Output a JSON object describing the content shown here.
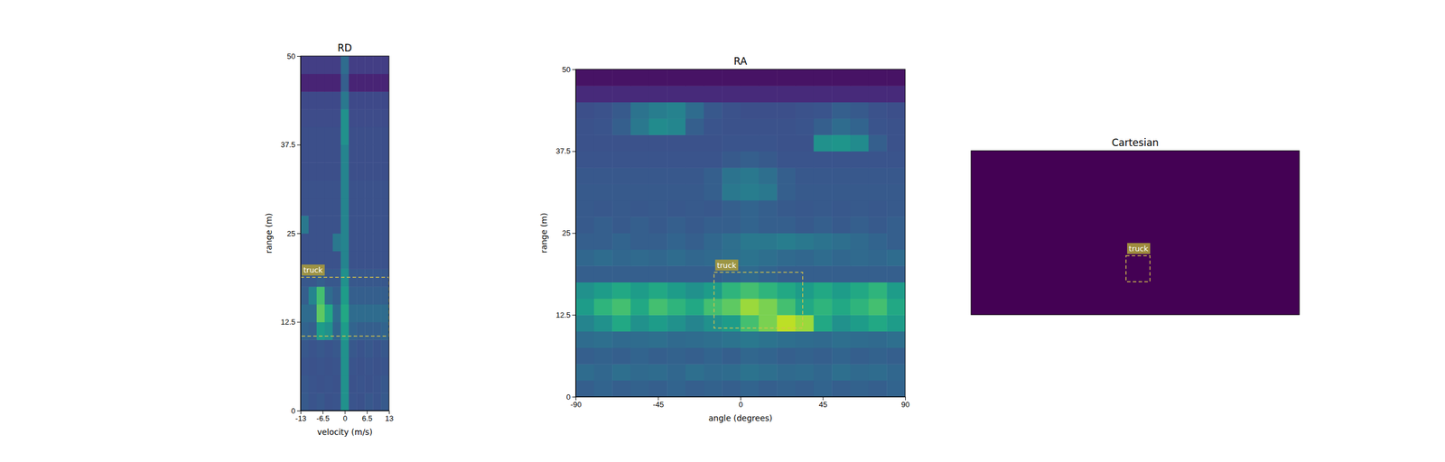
{
  "chart_data": [
    {
      "type": "heatmap",
      "title": "RD",
      "x_label": "velocity (m/s)",
      "y_label": "range (m)",
      "xlim": [
        -13,
        13
      ],
      "ylim": [
        0,
        50
      ],
      "xticks": [
        -13,
        -6.5,
        0,
        6.5,
        13
      ],
      "yticks": [
        0,
        12.5,
        25,
        37.5,
        50
      ],
      "zlim": [
        0,
        1
      ],
      "cells": [
        [
          0.28,
          0.26,
          0.27,
          0.25,
          0.26,
          0.5,
          0.26,
          0.25,
          0.27,
          0.26,
          0.28
        ],
        [
          0.27,
          0.26,
          0.25,
          0.26,
          0.25,
          0.5,
          0.25,
          0.26,
          0.25,
          0.26,
          0.27
        ],
        [
          0.26,
          0.25,
          0.26,
          0.25,
          0.26,
          0.5,
          0.26,
          0.25,
          0.26,
          0.25,
          0.26
        ],
        [
          0.27,
          0.26,
          0.27,
          0.26,
          0.27,
          0.5,
          0.27,
          0.26,
          0.27,
          0.26,
          0.27
        ],
        [
          0.32,
          0.3,
          0.55,
          0.5,
          0.32,
          0.55,
          0.32,
          0.3,
          0.3,
          0.3,
          0.32
        ],
        [
          0.35,
          0.35,
          0.75,
          0.6,
          0.35,
          0.6,
          0.35,
          0.35,
          0.35,
          0.35,
          0.35
        ],
        [
          0.3,
          0.45,
          0.7,
          0.35,
          0.3,
          0.55,
          0.3,
          0.3,
          0.3,
          0.3,
          0.3
        ],
        [
          0.27,
          0.27,
          0.3,
          0.27,
          0.27,
          0.5,
          0.27,
          0.27,
          0.27,
          0.27,
          0.27
        ],
        [
          0.25,
          0.25,
          0.25,
          0.25,
          0.25,
          0.45,
          0.25,
          0.25,
          0.25,
          0.25,
          0.25
        ],
        [
          0.25,
          0.25,
          0.25,
          0.25,
          0.4,
          0.45,
          0.25,
          0.25,
          0.25,
          0.25,
          0.25
        ],
        [
          0.4,
          0.25,
          0.25,
          0.25,
          0.25,
          0.45,
          0.25,
          0.25,
          0.25,
          0.25,
          0.25
        ],
        [
          0.25,
          0.25,
          0.25,
          0.25,
          0.25,
          0.45,
          0.25,
          0.25,
          0.25,
          0.25,
          0.25
        ],
        [
          0.25,
          0.25,
          0.25,
          0.25,
          0.25,
          0.45,
          0.25,
          0.25,
          0.25,
          0.25,
          0.25
        ],
        [
          0.24,
          0.24,
          0.24,
          0.24,
          0.24,
          0.45,
          0.24,
          0.24,
          0.24,
          0.24,
          0.24
        ],
        [
          0.24,
          0.24,
          0.24,
          0.24,
          0.24,
          0.45,
          0.24,
          0.24,
          0.24,
          0.24,
          0.24
        ],
        [
          0.24,
          0.24,
          0.24,
          0.24,
          0.24,
          0.5,
          0.24,
          0.24,
          0.24,
          0.24,
          0.24
        ],
        [
          0.23,
          0.23,
          0.23,
          0.23,
          0.23,
          0.5,
          0.23,
          0.23,
          0.23,
          0.23,
          0.23
        ],
        [
          0.22,
          0.22,
          0.22,
          0.22,
          0.22,
          0.4,
          0.22,
          0.22,
          0.22,
          0.22,
          0.22
        ],
        [
          0.1,
          0.1,
          0.1,
          0.1,
          0.1,
          0.3,
          0.1,
          0.1,
          0.1,
          0.1,
          0.1
        ],
        [
          0.18,
          0.18,
          0.18,
          0.18,
          0.18,
          0.35,
          0.18,
          0.18,
          0.18,
          0.18,
          0.18
        ]
      ],
      "boxes": [
        {
          "label": "truck",
          "x0": -13,
          "x1": 13,
          "y0": 10.5,
          "y1": 18.8
        }
      ]
    },
    {
      "type": "heatmap",
      "title": "RA",
      "x_label": "angle (degrees)",
      "y_label": "range (m)",
      "xlim": [
        -90,
        90
      ],
      "ylim": [
        0,
        50
      ],
      "xticks": [
        -90,
        -45,
        0,
        45,
        90
      ],
      "yticks": [
        0,
        12.5,
        25,
        37.5,
        50
      ],
      "zlim": [
        0,
        1
      ],
      "cells": [
        [
          0.3,
          0.32,
          0.3,
          0.31,
          0.3,
          0.32,
          0.3,
          0.31,
          0.3,
          0.32,
          0.3,
          0.31,
          0.3,
          0.32,
          0.3,
          0.31,
          0.3,
          0.32
        ],
        [
          0.35,
          0.33,
          0.36,
          0.34,
          0.35,
          0.33,
          0.36,
          0.34,
          0.35,
          0.38,
          0.36,
          0.34,
          0.35,
          0.33,
          0.36,
          0.34,
          0.35,
          0.33
        ],
        [
          0.3,
          0.31,
          0.3,
          0.32,
          0.3,
          0.31,
          0.3,
          0.32,
          0.3,
          0.33,
          0.32,
          0.3,
          0.31,
          0.3,
          0.32,
          0.3,
          0.31,
          0.3
        ],
        [
          0.35,
          0.36,
          0.34,
          0.35,
          0.36,
          0.34,
          0.35,
          0.36,
          0.38,
          0.4,
          0.38,
          0.36,
          0.35,
          0.34,
          0.36,
          0.35,
          0.34,
          0.36
        ],
        [
          0.45,
          0.5,
          0.6,
          0.5,
          0.55,
          0.5,
          0.45,
          0.5,
          0.55,
          0.7,
          0.8,
          0.9,
          0.85,
          0.6,
          0.5,
          0.55,
          0.6,
          0.55
        ],
        [
          0.55,
          0.65,
          0.7,
          0.6,
          0.7,
          0.65,
          0.6,
          0.7,
          0.75,
          0.85,
          0.8,
          0.7,
          0.6,
          0.65,
          0.6,
          0.65,
          0.7,
          0.6
        ],
        [
          0.5,
          0.55,
          0.6,
          0.55,
          0.6,
          0.55,
          0.5,
          0.55,
          0.65,
          0.7,
          0.65,
          0.6,
          0.55,
          0.6,
          0.55,
          0.6,
          0.65,
          0.55
        ],
        [
          0.3,
          0.3,
          0.3,
          0.3,
          0.3,
          0.3,
          0.3,
          0.3,
          0.32,
          0.34,
          0.32,
          0.3,
          0.3,
          0.3,
          0.3,
          0.3,
          0.3,
          0.3
        ],
        [
          0.33,
          0.35,
          0.33,
          0.34,
          0.33,
          0.35,
          0.33,
          0.34,
          0.36,
          0.38,
          0.36,
          0.34,
          0.33,
          0.35,
          0.33,
          0.34,
          0.33,
          0.35
        ],
        [
          0.3,
          0.3,
          0.32,
          0.3,
          0.3,
          0.32,
          0.3,
          0.33,
          0.36,
          0.4,
          0.4,
          0.42,
          0.4,
          0.38,
          0.36,
          0.34,
          0.32,
          0.3
        ],
        [
          0.28,
          0.3,
          0.28,
          0.3,
          0.28,
          0.3,
          0.28,
          0.3,
          0.3,
          0.32,
          0.3,
          0.3,
          0.28,
          0.3,
          0.28,
          0.3,
          0.28,
          0.3
        ],
        [
          0.28,
          0.27,
          0.28,
          0.27,
          0.28,
          0.27,
          0.28,
          0.27,
          0.3,
          0.32,
          0.3,
          0.28,
          0.27,
          0.28,
          0.27,
          0.28,
          0.27,
          0.28
        ],
        [
          0.28,
          0.28,
          0.28,
          0.28,
          0.28,
          0.28,
          0.28,
          0.3,
          0.4,
          0.42,
          0.4,
          0.3,
          0.28,
          0.28,
          0.28,
          0.28,
          0.28,
          0.28
        ],
        [
          0.27,
          0.27,
          0.27,
          0.27,
          0.27,
          0.27,
          0.27,
          0.3,
          0.38,
          0.4,
          0.36,
          0.3,
          0.27,
          0.27,
          0.27,
          0.27,
          0.27,
          0.27
        ],
        [
          0.26,
          0.26,
          0.26,
          0.26,
          0.26,
          0.26,
          0.26,
          0.26,
          0.28,
          0.3,
          0.28,
          0.26,
          0.26,
          0.26,
          0.26,
          0.26,
          0.26,
          0.26
        ],
        [
          0.25,
          0.25,
          0.25,
          0.25,
          0.25,
          0.25,
          0.25,
          0.25,
          0.26,
          0.26,
          0.26,
          0.25,
          0.25,
          0.5,
          0.52,
          0.48,
          0.3,
          0.25
        ],
        [
          0.25,
          0.26,
          0.3,
          0.4,
          0.48,
          0.46,
          0.3,
          0.26,
          0.25,
          0.25,
          0.25,
          0.25,
          0.26,
          0.3,
          0.35,
          0.32,
          0.26,
          0.25
        ],
        [
          0.24,
          0.25,
          0.28,
          0.38,
          0.42,
          0.44,
          0.35,
          0.27,
          0.25,
          0.24,
          0.24,
          0.24,
          0.25,
          0.26,
          0.3,
          0.28,
          0.25,
          0.24
        ],
        [
          0.12,
          0.12,
          0.12,
          0.12,
          0.12,
          0.12,
          0.12,
          0.12,
          0.12,
          0.12,
          0.12,
          0.12,
          0.12,
          0.12,
          0.12,
          0.12,
          0.12,
          0.12
        ],
        [
          0.05,
          0.05,
          0.05,
          0.05,
          0.05,
          0.05,
          0.05,
          0.05,
          0.05,
          0.05,
          0.05,
          0.05,
          0.05,
          0.05,
          0.05,
          0.05,
          0.05,
          0.05
        ]
      ],
      "boxes": [
        {
          "label": "truck",
          "x0": -14.4,
          "x1": 34,
          "y0": 10.5,
          "y1": 19
        }
      ]
    },
    {
      "type": "heatmap",
      "title": "Cartesian",
      "tick_labels": false,
      "xlim": [
        -50,
        50
      ],
      "ylim": [
        0,
        50
      ],
      "zlim": [
        0,
        1
      ],
      "cells": [
        [
          0
        ]
      ],
      "boxes": [
        {
          "label": "truck",
          "x0": -2.8,
          "x1": 4.5,
          "y0": 10.1,
          "y1": 18
        }
      ]
    }
  ]
}
